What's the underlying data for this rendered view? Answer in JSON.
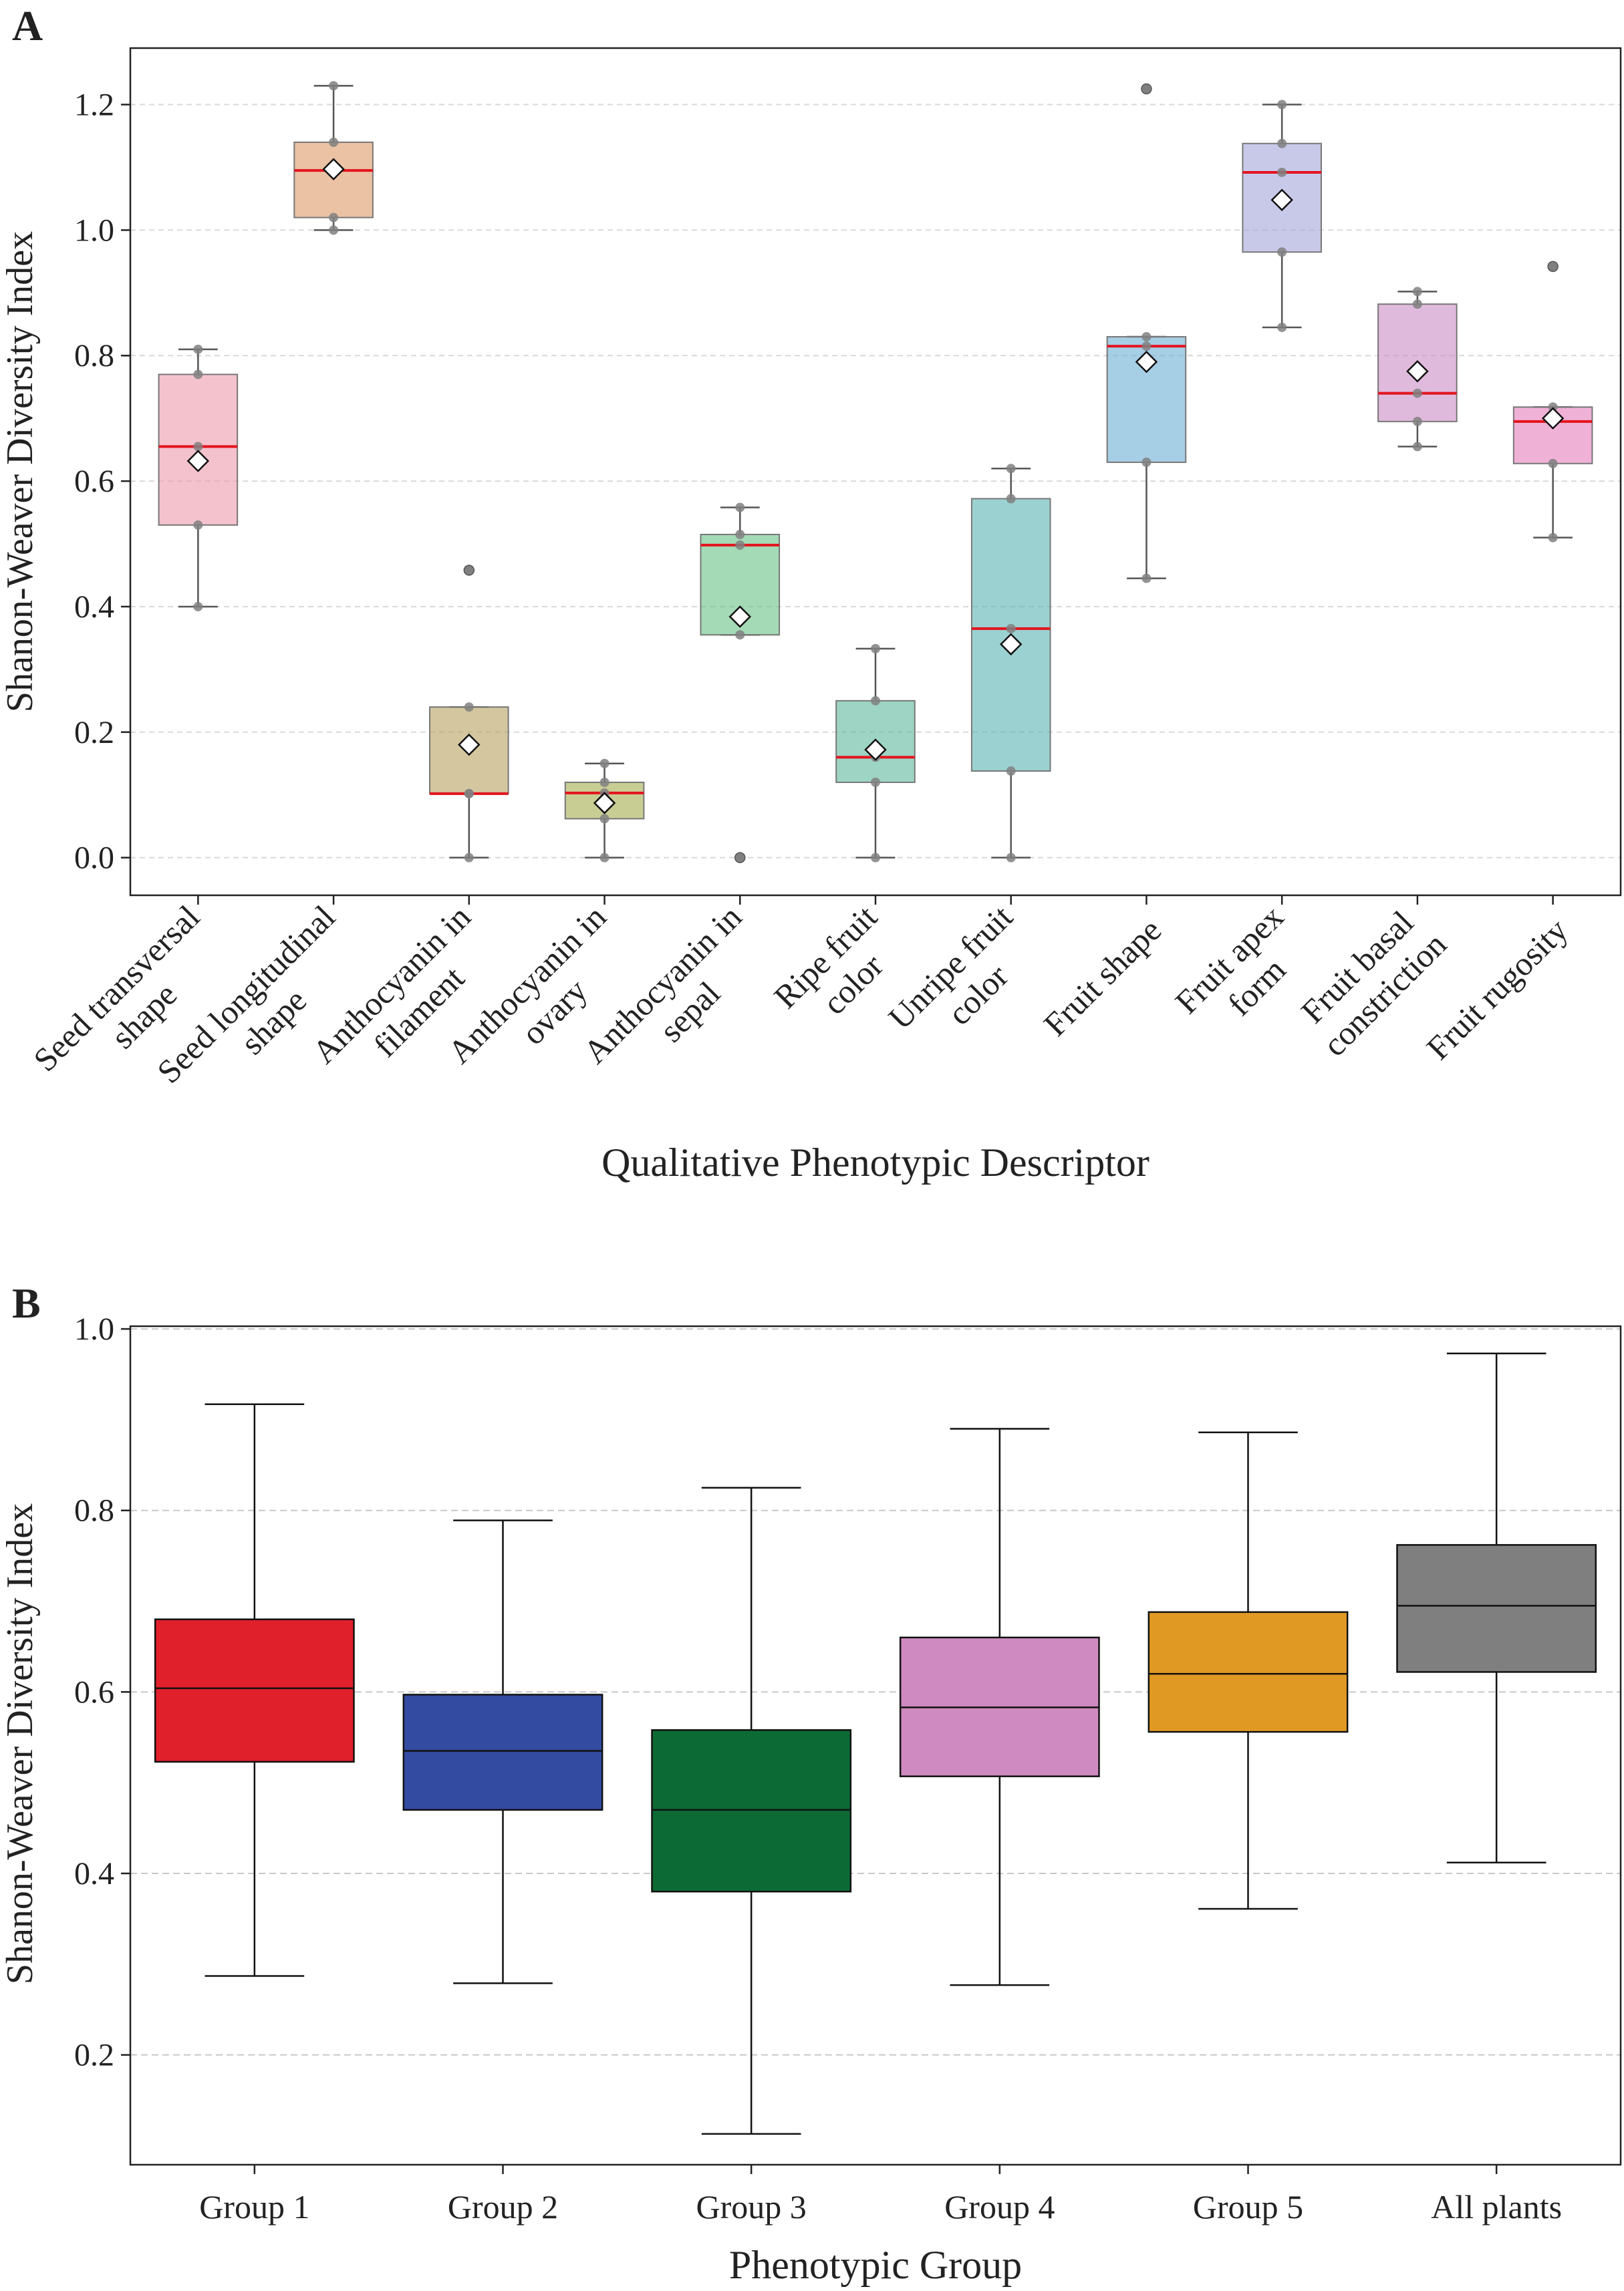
{
  "chart_data": [
    {
      "type": "box",
      "panel_label": "A",
      "xlabel": "Qualitative Phenotypic Descriptor",
      "ylabel": "Shanon-Weaver Diversity Index",
      "ylim": [
        -0.06,
        1.29
      ],
      "yticks": [
        "0.0",
        "0.2",
        "0.4",
        "0.6",
        "0.8",
        "1.0",
        "1.2"
      ],
      "grid": true,
      "categories": [
        {
          "label": [
            "Seed transversal",
            "shape"
          ],
          "color": "#ec9aab",
          "whisker_low": 0.4,
          "q1": 0.53,
          "median": 0.655,
          "q3": 0.77,
          "whisker_high": 0.81,
          "mean": 0.632,
          "points": [
            0.4,
            0.53,
            0.655,
            0.77,
            0.81
          ],
          "outliers": []
        },
        {
          "label": [
            "Seed longitudinal",
            "shape"
          ],
          "color": "#dd9a66",
          "whisker_low": 1.0,
          "q1": 1.02,
          "median": 1.095,
          "q3": 1.14,
          "whisker_high": 1.23,
          "mean": 1.097,
          "points": [
            1.0,
            1.02,
            1.095,
            1.14,
            1.23
          ],
          "outliers": []
        },
        {
          "label": [
            "Anthocyanin in",
            "filament"
          ],
          "color": "#b8a261",
          "whisker_low": 0.0,
          "q1": 0.102,
          "median": 0.102,
          "q3": 0.24,
          "whisker_high": 0.24,
          "mean": 0.18,
          "points": [
            0.0,
            0.102,
            0.102,
            0.24
          ],
          "outliers": [
            0.458
          ]
        },
        {
          "label": [
            "Anthocyanin in",
            "ovary"
          ],
          "color": "#a4ac4d",
          "whisker_low": 0.0,
          "q1": 0.062,
          "median": 0.103,
          "q3": 0.12,
          "whisker_high": 0.15,
          "mean": 0.087,
          "points": [
            0.0,
            0.062,
            0.103,
            0.12,
            0.15
          ],
          "outliers": []
        },
        {
          "label": [
            "Anthocyanin in",
            "sepal"
          ],
          "color": "#68c183",
          "whisker_low": 0.355,
          "q1": 0.355,
          "median": 0.498,
          "q3": 0.515,
          "whisker_high": 0.558,
          "mean": 0.384,
          "points": [
            0.355,
            0.498,
            0.515,
            0.558
          ],
          "outliers": [
            0.0
          ]
        },
        {
          "label": [
            "Ripe fruit",
            "color"
          ],
          "color": "#5bb89c",
          "whisker_low": 0.0,
          "q1": 0.12,
          "median": 0.16,
          "q3": 0.25,
          "whisker_high": 0.333,
          "mean": 0.172,
          "points": [
            0.0,
            0.12,
            0.16,
            0.25,
            0.333
          ],
          "outliers": []
        },
        {
          "label": [
            "Unripe fruit",
            "color"
          ],
          "color": "#58b2b3",
          "whisker_low": 0.0,
          "q1": 0.138,
          "median": 0.365,
          "q3": 0.572,
          "whisker_high": 0.62,
          "mean": 0.34,
          "points": [
            0.0,
            0.138,
            0.365,
            0.572,
            0.62
          ],
          "outliers": []
        },
        {
          "label": [
            "Fruit shape"
          ],
          "color": "#6aadd3",
          "whisker_low": 0.445,
          "q1": 0.63,
          "median": 0.815,
          "q3": 0.83,
          "whisker_high": 0.83,
          "mean": 0.79,
          "points": [
            0.445,
            0.63,
            0.815,
            0.83
          ],
          "outliers": [
            1.225
          ]
        },
        {
          "label": [
            "Fruit apex",
            "form"
          ],
          "color": "#a3a5da",
          "whisker_low": 0.845,
          "q1": 0.965,
          "median": 1.092,
          "q3": 1.138,
          "whisker_high": 1.2,
          "mean": 1.048,
          "points": [
            0.845,
            0.965,
            1.092,
            1.138,
            1.2
          ],
          "outliers": []
        },
        {
          "label": [
            "Fruit basal",
            "constriction"
          ],
          "color": "#cc8cc4",
          "whisker_low": 0.655,
          "q1": 0.695,
          "median": 0.74,
          "q3": 0.882,
          "whisker_high": 0.902,
          "mean": 0.775,
          "points": [
            0.655,
            0.695,
            0.74,
            0.882,
            0.902
          ],
          "outliers": []
        },
        {
          "label": [
            "Fruit rugosity"
          ],
          "color": "#e67dbd",
          "whisker_low": 0.51,
          "q1": 0.628,
          "median": 0.695,
          "q3": 0.718,
          "whisker_high": 0.718,
          "mean": 0.7,
          "points": [
            0.51,
            0.628,
            0.695,
            0.718
          ],
          "outliers": [
            0.942
          ]
        }
      ]
    },
    {
      "type": "box",
      "panel_label": "B",
      "xlabel": "Phenotypic Group",
      "ylabel": "Shanon-Weaver Diversity Index",
      "ylim": [
        0.079,
        1.003
      ],
      "yticks": [
        "0.2",
        "0.4",
        "0.6",
        "0.8",
        "1.0"
      ],
      "grid": true,
      "categories": [
        {
          "label": "Group 1",
          "color": "#e0202b",
          "whisker_low": 0.287,
          "q1": 0.523,
          "median": 0.604,
          "q3": 0.68,
          "whisker_high": 0.917
        },
        {
          "label": "Group 2",
          "color": "#344ba2",
          "whisker_low": 0.279,
          "q1": 0.47,
          "median": 0.535,
          "q3": 0.597,
          "whisker_high": 0.789
        },
        {
          "label": "Group 3",
          "color": "#0c6b35",
          "whisker_low": 0.113,
          "q1": 0.38,
          "median": 0.47,
          "q3": 0.558,
          "whisker_high": 0.825
        },
        {
          "label": "Group 4",
          "color": "#cf8bc1",
          "whisker_low": 0.277,
          "q1": 0.507,
          "median": 0.583,
          "q3": 0.66,
          "whisker_high": 0.89
        },
        {
          "label": "Group 5",
          "color": "#e09a24",
          "whisker_low": 0.361,
          "q1": 0.556,
          "median": 0.62,
          "q3": 0.688,
          "whisker_high": 0.886
        },
        {
          "label": "All plants",
          "color": "#7f7f7f",
          "whisker_low": 0.412,
          "q1": 0.622,
          "median": 0.695,
          "q3": 0.762,
          "whisker_high": 0.973
        }
      ]
    }
  ]
}
